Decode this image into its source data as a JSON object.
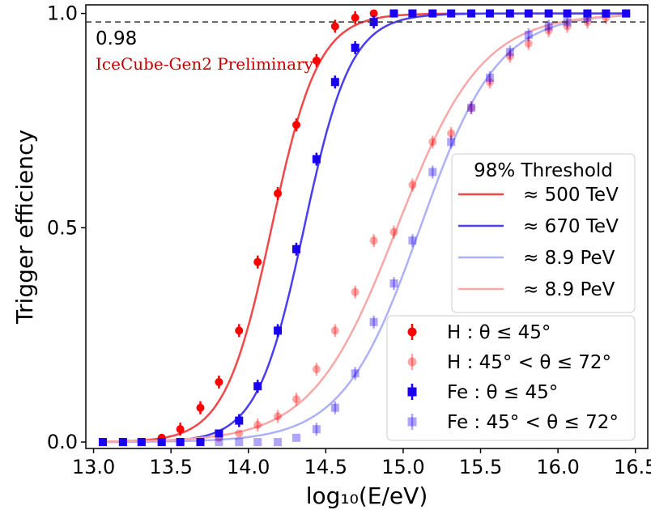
{
  "chart_data": {
    "type": "scatter",
    "xlabel": "log₁₀(E/eV)",
    "ylabel": "Trigger efficiency",
    "xlim": [
      12.95,
      16.58
    ],
    "ylim": [
      -0.015,
      1.02
    ],
    "xticks": [
      "13.0",
      "13.5",
      "14.0",
      "14.5",
      "15.0",
      "15.5",
      "16.0",
      "16.5"
    ],
    "yticks": [
      "0.0",
      "0.5",
      "1.0"
    ],
    "hline": {
      "y": 0.98,
      "label": "0.98"
    },
    "annotation": "IceCube-Gen2 Preliminary",
    "grid": false,
    "colors": {
      "red": "#ff0000",
      "red_light": "#ff8c8c",
      "blue": "#1a00f0",
      "blue_light": "#8f8ff5"
    },
    "fits": {
      "title": "98% Threshold",
      "legend_placement": "center-right",
      "curves": [
        {
          "label": "≈ 500 TeV",
          "mu": 14.15,
          "k": 6.6,
          "color": "#f04848"
        },
        {
          "label": "≈ 670 TeV",
          "mu": 14.36,
          "k": 6.6,
          "color": "#4a3ff0"
        },
        {
          "label": "≈ 8.9  PeV",
          "mu": 15.11,
          "k": 4.0,
          "color": "#aeb0f8"
        },
        {
          "label": "≈ 8.9  PeV",
          "mu": 14.96,
          "k": 3.65,
          "color": "#f9a8a8"
        }
      ]
    },
    "series_legend_placement": "lower-right",
    "series": [
      {
        "name": "H : θ ≤ 45°",
        "marker": "circle",
        "color": "#ff0000",
        "opacity": 1.0,
        "x": [
          13.06,
          13.19,
          13.31,
          13.44,
          13.56,
          13.69,
          13.81,
          13.94,
          14.06,
          14.19,
          14.31,
          14.44,
          14.56,
          14.69,
          14.81,
          14.94,
          15.06,
          15.19,
          15.31,
          15.44,
          15.56,
          15.69,
          15.81,
          15.94,
          16.06,
          16.19,
          16.31,
          16.44
        ],
        "y": [
          0.0,
          0.0,
          0.0,
          0.01,
          0.03,
          0.08,
          0.14,
          0.26,
          0.42,
          0.58,
          0.74,
          0.89,
          0.97,
          0.99,
          1.0,
          1.0,
          1.0,
          1.0,
          1.0,
          1.0,
          1.0,
          1.0,
          1.0,
          1.0,
          1.0,
          1.0,
          1.0,
          1.0
        ]
      },
      {
        "name": "H : 45° < θ ≤ 72°",
        "marker": "circle",
        "color": "#ff0000",
        "opacity": 0.35,
        "x": [
          13.06,
          13.19,
          13.31,
          13.44,
          13.56,
          13.69,
          13.81,
          13.94,
          14.06,
          14.19,
          14.31,
          14.44,
          14.56,
          14.69,
          14.81,
          14.94,
          15.06,
          15.19,
          15.31,
          15.44,
          15.56,
          15.69,
          15.81,
          15.94,
          16.06,
          16.19,
          16.31,
          16.44
        ],
        "y": [
          0.0,
          0.0,
          0.0,
          0.0,
          0.0,
          0.0,
          0.01,
          0.02,
          0.04,
          0.06,
          0.1,
          0.17,
          0.26,
          0.35,
          0.47,
          0.49,
          0.6,
          0.7,
          0.72,
          0.78,
          0.84,
          0.9,
          0.93,
          0.96,
          0.97,
          0.98,
          0.99,
          1.0
        ]
      },
      {
        "name": "Fe : θ ≤ 45°",
        "marker": "square",
        "color": "#1a00f0",
        "opacity": 1.0,
        "x": [
          13.06,
          13.19,
          13.31,
          13.44,
          13.56,
          13.69,
          13.81,
          13.94,
          14.06,
          14.19,
          14.31,
          14.44,
          14.56,
          14.69,
          14.81,
          14.94,
          15.06,
          15.19,
          15.31,
          15.44,
          15.56,
          15.69,
          15.81,
          15.94,
          16.06,
          16.19,
          16.31,
          16.44
        ],
        "y": [
          0.0,
          0.0,
          0.0,
          0.0,
          0.0,
          0.0,
          0.02,
          0.05,
          0.13,
          0.26,
          0.45,
          0.66,
          0.84,
          0.92,
          0.98,
          1.0,
          1.0,
          1.0,
          1.0,
          1.0,
          1.0,
          1.0,
          1.0,
          1.0,
          1.0,
          1.0,
          1.0,
          1.0
        ]
      },
      {
        "name": "Fe : 45° < θ ≤ 72°",
        "marker": "square",
        "color": "#1a00f0",
        "opacity": 0.35,
        "x": [
          13.06,
          13.19,
          13.31,
          13.44,
          13.56,
          13.69,
          13.81,
          13.94,
          14.06,
          14.19,
          14.31,
          14.44,
          14.56,
          14.69,
          14.81,
          14.94,
          15.06,
          15.19,
          15.31,
          15.44,
          15.56,
          15.69,
          15.81,
          15.94,
          16.06,
          16.19,
          16.31,
          16.44
        ],
        "y": [
          0.0,
          0.0,
          0.0,
          0.0,
          0.0,
          0.0,
          0.0,
          0.0,
          0.0,
          0.0,
          0.01,
          0.03,
          0.08,
          0.16,
          0.28,
          0.37,
          0.47,
          0.63,
          0.7,
          0.78,
          0.85,
          0.91,
          0.95,
          0.97,
          0.98,
          0.99,
          1.0,
          1.0
        ]
      }
    ]
  }
}
